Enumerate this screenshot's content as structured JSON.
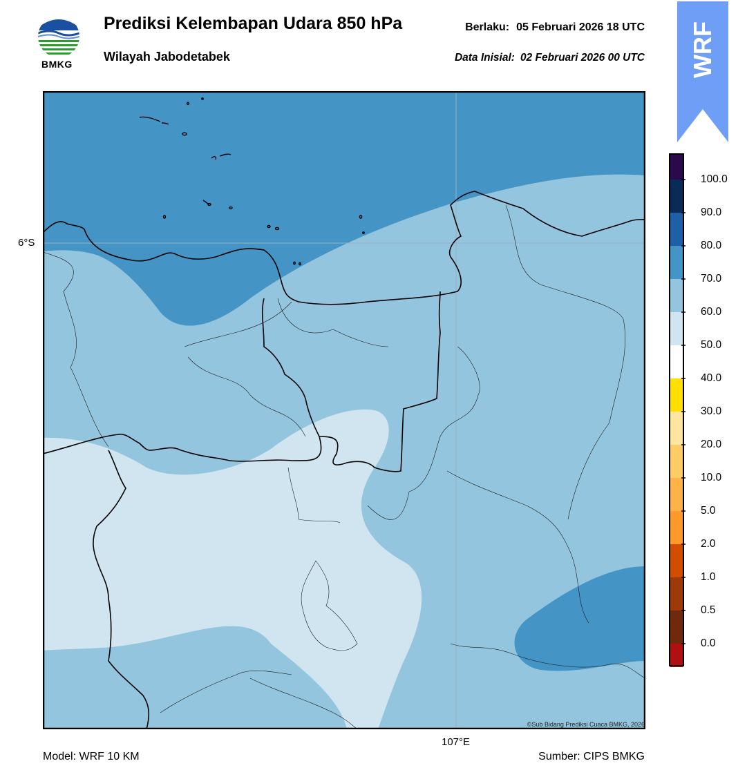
{
  "header": {
    "title": "Prediksi Kelembapan Udara 850 hPa",
    "subtitle": "Wilayah Jabodetabek",
    "valid_label": "Berlaku:",
    "valid_value": "05 Februari 2026 18 UTC",
    "init_label": "Data Inisial:",
    "init_value": "02 Februari 2026 00 UTC"
  },
  "logo": {
    "text": "BMKG",
    "icon": "bmkg-logo-icon"
  },
  "badge": {
    "text": "WRF",
    "color": "#6f9ef6"
  },
  "map": {
    "lat_label": "6°S",
    "lon_label": "107°E",
    "copyright": "©Sub Bidang Prediksi Cuaca BMKG, 2026"
  },
  "colorbar": {
    "ticks": [
      "100.0",
      "90.0",
      "80.0",
      "70.0",
      "60.0",
      "50.0",
      "40.0",
      "30.0",
      "20.0",
      "10.0",
      "5.0",
      "2.0",
      "1.0",
      "0.5",
      "0.0"
    ],
    "colors_top_to_bottom": [
      "#2a0a4a",
      "#0a2a57",
      "#1f5fa8",
      "#4494c6",
      "#94c5de",
      "#d1e5f0",
      "#ffffff",
      "#ffe000",
      "#ffe6a0",
      "#ffcc66",
      "#ffb347",
      "#ff9a2a",
      "#d14d00",
      "#9c3a0a",
      "#6e2a0a",
      "#b01010",
      "#e6322d"
    ]
  },
  "field_colors": {
    "band_50_60": "#d1e5f0",
    "band_60_70": "#94c5de",
    "band_70_80": "#4494c6"
  },
  "footer": {
    "model": "Model: WRF 10 KM",
    "source": "Sumber: CIPS BMKG"
  }
}
